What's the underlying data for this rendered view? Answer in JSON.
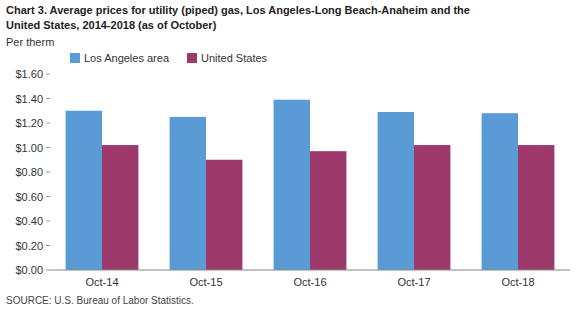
{
  "chart_data": {
    "type": "bar",
    "title": [
      "Chart 3. Average prices for utility (piped) gas, Los Angeles-Long Beach-Anaheim and the",
      "United States, 2014-2018  (as of October)"
    ],
    "ylabel": "Per therm",
    "annotations": [
      "SOURCE: U.S. Bureau of Labor Statistics."
    ],
    "categories": [
      "Oct-14",
      "Oct-15",
      "Oct-16",
      "Oct-17",
      "Oct-18"
    ],
    "series": [
      {
        "name": "Los Angeles area",
        "color": "#5B9BD5",
        "values": [
          1.3,
          1.25,
          1.39,
          1.29,
          1.28
        ]
      },
      {
        "name": "United States",
        "color": "#9E3A6B",
        "values": [
          1.02,
          0.9,
          0.97,
          1.02,
          1.02
        ]
      }
    ],
    "ylim": [
      0.0,
      1.6
    ],
    "yticks": [
      {
        "value": 0.0,
        "label": "$0.00"
      },
      {
        "value": 0.2,
        "label": "$0.20"
      },
      {
        "value": 0.4,
        "label": "$0.40"
      },
      {
        "value": 0.6,
        "label": "$0.60"
      },
      {
        "value": 0.8,
        "label": "$0.80"
      },
      {
        "value": 1.0,
        "label": "$1.00"
      },
      {
        "value": 1.2,
        "label": "$1.20"
      },
      {
        "value": 1.4,
        "label": "$1.40"
      },
      {
        "value": 1.6,
        "label": "$1.60"
      }
    ],
    "grid": false,
    "legend": "upper left"
  }
}
